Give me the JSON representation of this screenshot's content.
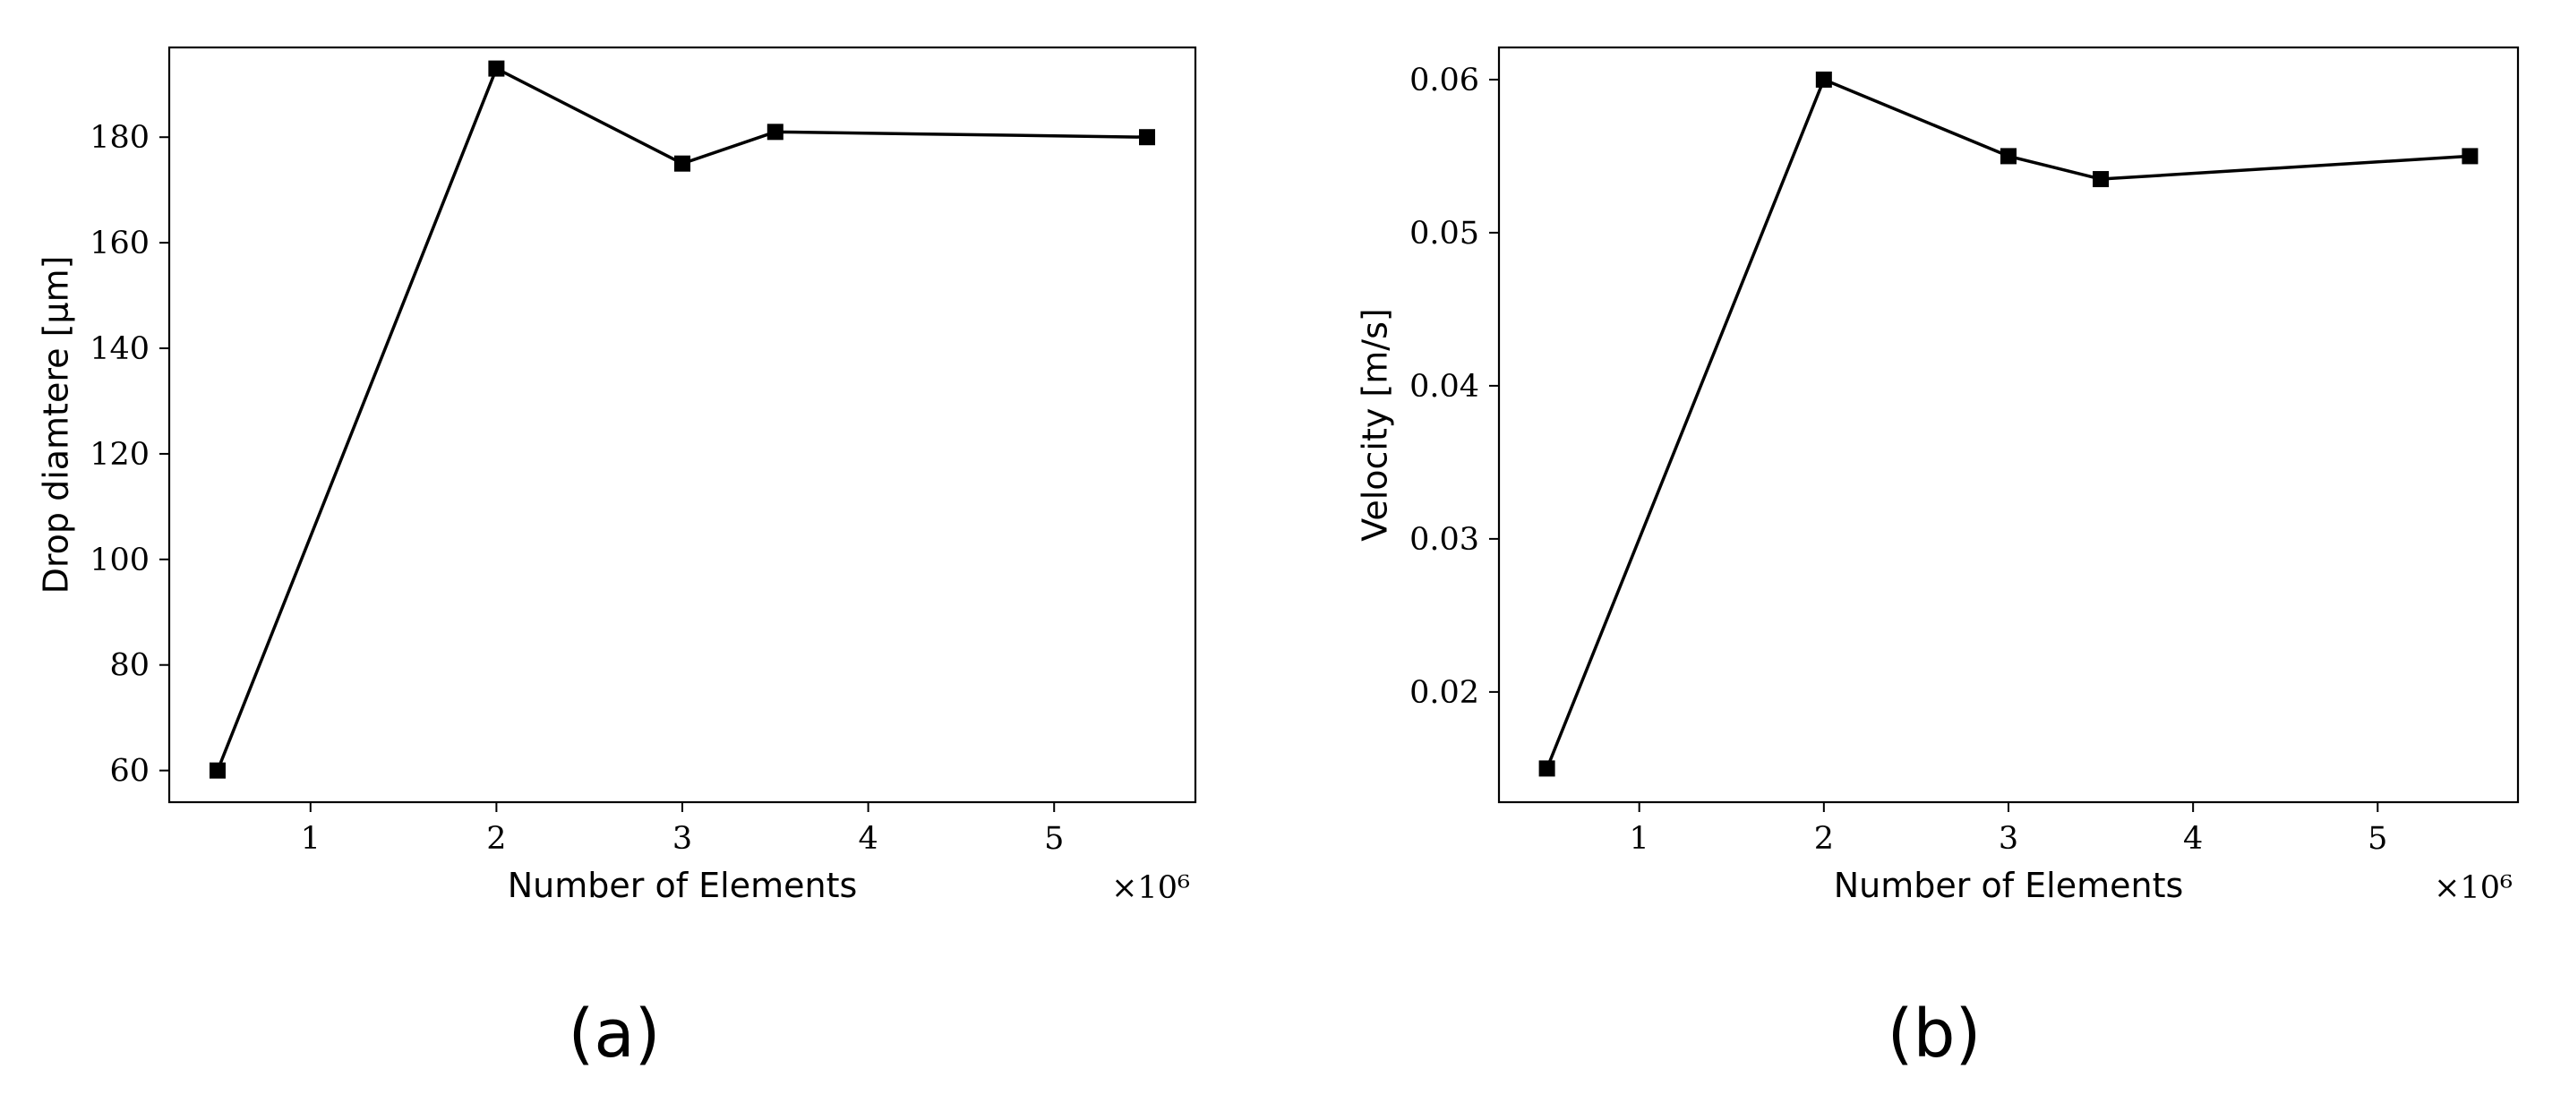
{
  "chart_data": [
    {
      "type": "line",
      "panel_label": "(a)",
      "title": "",
      "xlabel": "Number of Elements",
      "ylabel": "Drop diamtere [μm]",
      "x_multiplier_label": "×10⁶",
      "xlim": [
        0.24,
        5.76
      ],
      "ylim": [
        54,
        197
      ],
      "xticks": [
        1,
        2,
        3,
        4,
        5
      ],
      "yticks": [
        60,
        80,
        100,
        120,
        140,
        160,
        180
      ],
      "grid": false,
      "marker": "square",
      "color": "#000000",
      "series": [
        {
          "x": [
            0.5,
            2.0,
            3.0,
            3.5,
            5.5
          ],
          "values": [
            60,
            193,
            175,
            181,
            180
          ]
        }
      ]
    },
    {
      "type": "line",
      "panel_label": "(b)",
      "title": "",
      "xlabel": "Number of Elements",
      "ylabel": "Velocity [m/s]",
      "x_multiplier_label": "×10⁶",
      "xlim": [
        0.24,
        5.76
      ],
      "ylim": [
        0.0128,
        0.0621
      ],
      "xticks": [
        1,
        2,
        3,
        4,
        5
      ],
      "yticks": [
        0.02,
        0.03,
        0.04,
        0.05,
        0.06
      ],
      "grid": false,
      "marker": "square",
      "color": "#000000",
      "series": [
        {
          "x": [
            0.5,
            2.0,
            3.0,
            3.5,
            5.5
          ],
          "values": [
            0.015,
            0.06,
            0.055,
            0.0535,
            0.055
          ]
        }
      ]
    }
  ]
}
